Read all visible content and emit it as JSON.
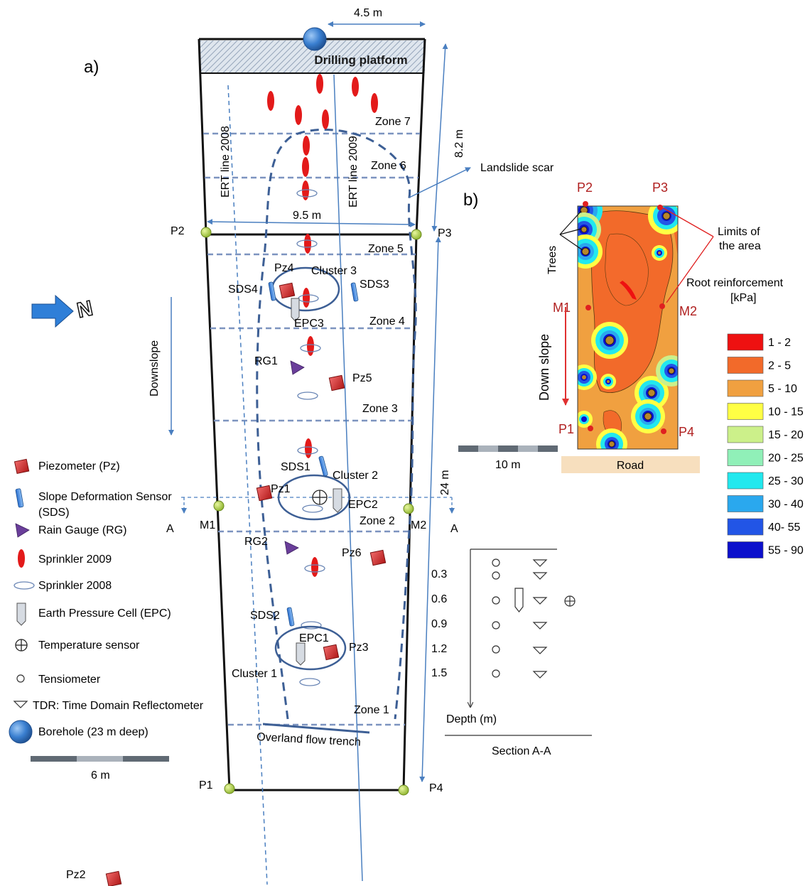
{
  "panel_a": {
    "label": "a)",
    "platform": "Drilling platform",
    "dims": {
      "top_width": "4.5 m",
      "upper_length": "8.2 m",
      "mid_width": "9.5 m",
      "total_length": "24 m"
    },
    "ert": {
      "line_2008": "ERT line 2008",
      "line_2009": "ERT line 2009"
    },
    "zones": [
      "Zone 7",
      "Zone 6",
      "Zone 5",
      "Zone 4",
      "Zone 3",
      "Zone 2",
      "Zone 1"
    ],
    "corners": {
      "p1": "P1",
      "p2": "P2",
      "p3": "P3",
      "p4": "P4",
      "m1": "M1",
      "m2": "M2"
    },
    "section_marks": {
      "left": "A",
      "right": "A"
    },
    "downslope": "Downslope",
    "north": "N",
    "landslide_scar": "Landslide scar",
    "trench": "Overland flow trench",
    "clusters": {
      "c1": "Cluster 1",
      "c2": "Cluster 2",
      "c3": "Cluster 3"
    },
    "instruments": {
      "pz1": "Pz1",
      "pz2": "Pz2",
      "pz3": "Pz3",
      "pz4": "Pz4",
      "pz5": "Pz5",
      "pz6": "Pz6",
      "sds1": "SDS1",
      "sds2": "SDS2",
      "sds3": "SDS3",
      "sds4": "SDS4",
      "rg1": "RG1",
      "rg2": "RG2",
      "epc1": "EPC1",
      "epc2": "EPC2",
      "epc3": "EPC3"
    },
    "scale": "6 m"
  },
  "legend": {
    "items": [
      "Piezometer (Pz)",
      "Slope Deformation Sensor",
      "(SDS)",
      "Rain Gauge (RG)",
      "Sprinkler 2009",
      "Sprinkler 2008",
      "Earth Pressure Cell (EPC)",
      "Temperature sensor",
      "Tensiometer",
      "TDR: Time Domain Reflectometer",
      "Borehole (23 m deep)"
    ]
  },
  "section": {
    "depths": [
      "0.3",
      "0.6",
      "0.9",
      "1.2",
      "1.5"
    ],
    "axis_label": "Depth (m)",
    "title": "Section A-A"
  },
  "panel_b": {
    "label": "b)",
    "corners": {
      "p1": "P1",
      "p2": "P2",
      "p3": "P3",
      "p4": "P4",
      "m1": "M1",
      "m2": "M2"
    },
    "trees": "Trees",
    "limits": [
      "Limits of",
      "the area"
    ],
    "root_title": [
      "Root reinforcement",
      "[kPa]"
    ],
    "downslope": "Down slope",
    "scale": "10 m",
    "road": "Road",
    "colorbar": [
      {
        "label": "1 - 2",
        "color": "#ee1111"
      },
      {
        "label": "2 - 5",
        "color": "#f26a2a"
      },
      {
        "label": "5 - 10",
        "color": "#f0a040"
      },
      {
        "label": "10 - 15",
        "color": "#ffff44"
      },
      {
        "label": "15 - 20",
        "color": "#ccf08a"
      },
      {
        "label": "20 - 25",
        "color": "#90f0b8"
      },
      {
        "label": "25 - 30",
        "color": "#22e8ee"
      },
      {
        "label": "30 - 40",
        "color": "#2aa8ee"
      },
      {
        "label": "40- 55",
        "color": "#2255e6"
      },
      {
        "label": "55 - 90",
        "color": "#0c10cc"
      }
    ]
  }
}
